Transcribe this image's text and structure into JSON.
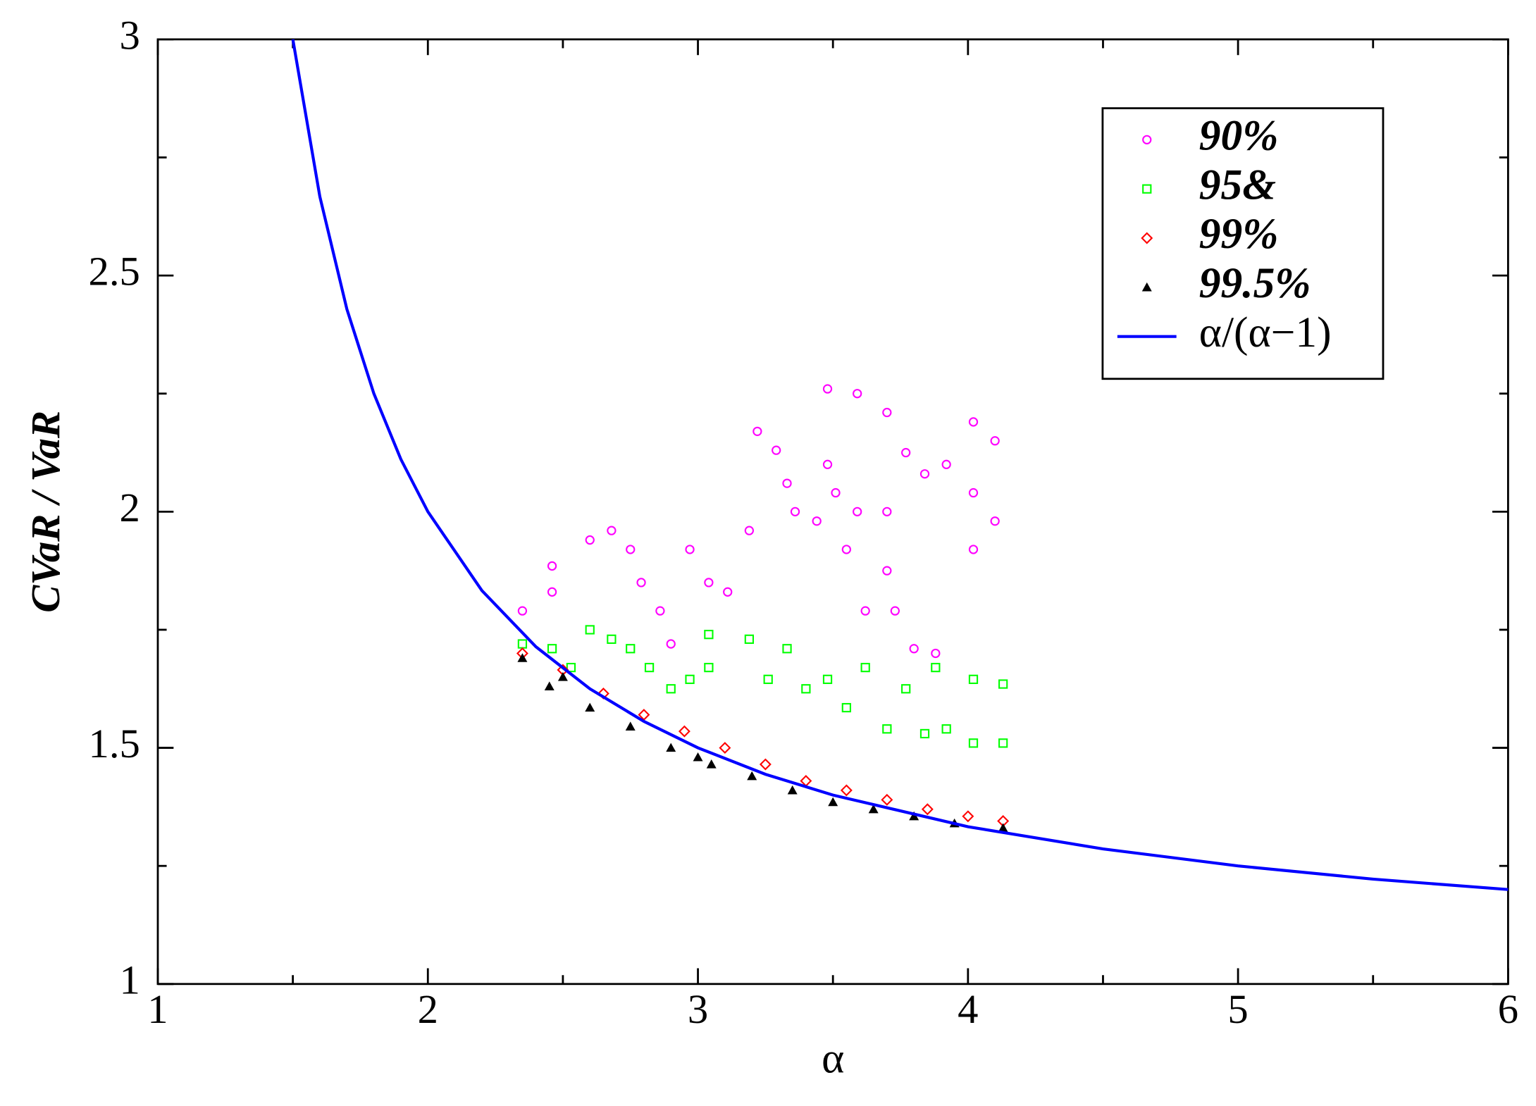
{
  "chart_data": {
    "type": "scatter",
    "xlabel": "α",
    "ylabel": "CVaR / VaR",
    "xlim": [
      1,
      6
    ],
    "ylim": [
      1,
      3
    ],
    "xticks": [
      1,
      2,
      3,
      4,
      5,
      6
    ],
    "yticks": [
      1,
      1.5,
      2,
      2.5,
      3
    ],
    "xminorticks": [
      1.5,
      2.5,
      3.5,
      4.5,
      5.5
    ],
    "yminorticks": [
      1.25,
      1.75,
      2.25,
      2.75
    ],
    "legend": "upper right",
    "series": [
      {
        "name": "90%",
        "color": "#ff00ff",
        "marker": "circle",
        "x": [
          2.35,
          2.46,
          2.46,
          2.6,
          2.68,
          2.75,
          2.79,
          2.86,
          2.9,
          2.97,
          3.04,
          3.11,
          3.19,
          3.22,
          3.29,
          3.33,
          3.36,
          3.44,
          3.48,
          3.51,
          3.55,
          3.62,
          3.7,
          3.73,
          3.8,
          3.88,
          3.48,
          3.59,
          3.7,
          3.77,
          3.84,
          3.92,
          4.02,
          4.1,
          4.02,
          4.1,
          3.59,
          3.7,
          4.02
        ],
        "values": [
          1.79,
          1.83,
          1.885,
          1.94,
          1.96,
          1.92,
          1.85,
          1.79,
          1.72,
          1.92,
          1.85,
          1.83,
          1.96,
          2.17,
          2.13,
          2.06,
          2.0,
          1.98,
          2.1,
          2.04,
          1.92,
          1.79,
          1.875,
          1.79,
          1.71,
          1.7,
          2.26,
          2.25,
          2.21,
          2.125,
          2.08,
          2.1,
          2.04,
          1.98,
          2.19,
          2.15,
          2.0,
          2.0,
          1.92
        ]
      },
      {
        "name": "95&",
        "color": "#00ff00",
        "marker": "square",
        "x": [
          2.35,
          2.46,
          2.6,
          2.68,
          2.75,
          2.82,
          2.9,
          2.97,
          3.04,
          3.19,
          3.26,
          3.33,
          3.4,
          3.48,
          3.55,
          3.62,
          3.7,
          3.77,
          3.84,
          3.92,
          4.02,
          4.13,
          4.13,
          4.02,
          3.88,
          2.53,
          3.04
        ],
        "values": [
          1.72,
          1.71,
          1.75,
          1.73,
          1.71,
          1.67,
          1.625,
          1.645,
          1.74,
          1.73,
          1.645,
          1.71,
          1.625,
          1.645,
          1.585,
          1.67,
          1.54,
          1.625,
          1.53,
          1.54,
          1.51,
          1.51,
          1.635,
          1.645,
          1.67,
          1.67,
          1.67
        ]
      },
      {
        "name": "99%",
        "color": "#ff0000",
        "marker": "diamond",
        "x": [
          2.35,
          2.5,
          2.65,
          2.8,
          2.95,
          3.1,
          3.25,
          3.4,
          3.55,
          3.7,
          3.85,
          4.0,
          4.13
        ],
        "values": [
          1.7,
          1.665,
          1.615,
          1.57,
          1.535,
          1.5,
          1.465,
          1.43,
          1.41,
          1.39,
          1.37,
          1.355,
          1.345
        ]
      },
      {
        "name": "99.5%",
        "color": "#000000",
        "marker": "triangle",
        "x": [
          2.35,
          2.45,
          2.6,
          2.75,
          2.9,
          3.05,
          3.2,
          3.35,
          3.5,
          3.65,
          3.8,
          3.95,
          4.13,
          2.5,
          3.0
        ],
        "values": [
          1.69,
          1.63,
          1.585,
          1.545,
          1.5,
          1.465,
          1.44,
          1.41,
          1.385,
          1.37,
          1.355,
          1.34,
          1.33,
          1.65,
          1.48
        ]
      },
      {
        "name": "α/(α−1)",
        "color": "#0000ff",
        "marker": "line",
        "x": [
          1.5,
          1.6,
          1.7,
          1.8,
          1.9,
          2,
          2.2,
          2.4,
          2.6,
          2.8,
          3,
          3.25,
          3.5,
          4,
          4.5,
          5,
          5.5,
          6
        ],
        "values": [
          3,
          2.667,
          2.429,
          2.25,
          2.111,
          2,
          1.833,
          1.714,
          1.625,
          1.556,
          1.5,
          1.444,
          1.4,
          1.333,
          1.286,
          1.25,
          1.222,
          1.2
        ]
      }
    ]
  }
}
